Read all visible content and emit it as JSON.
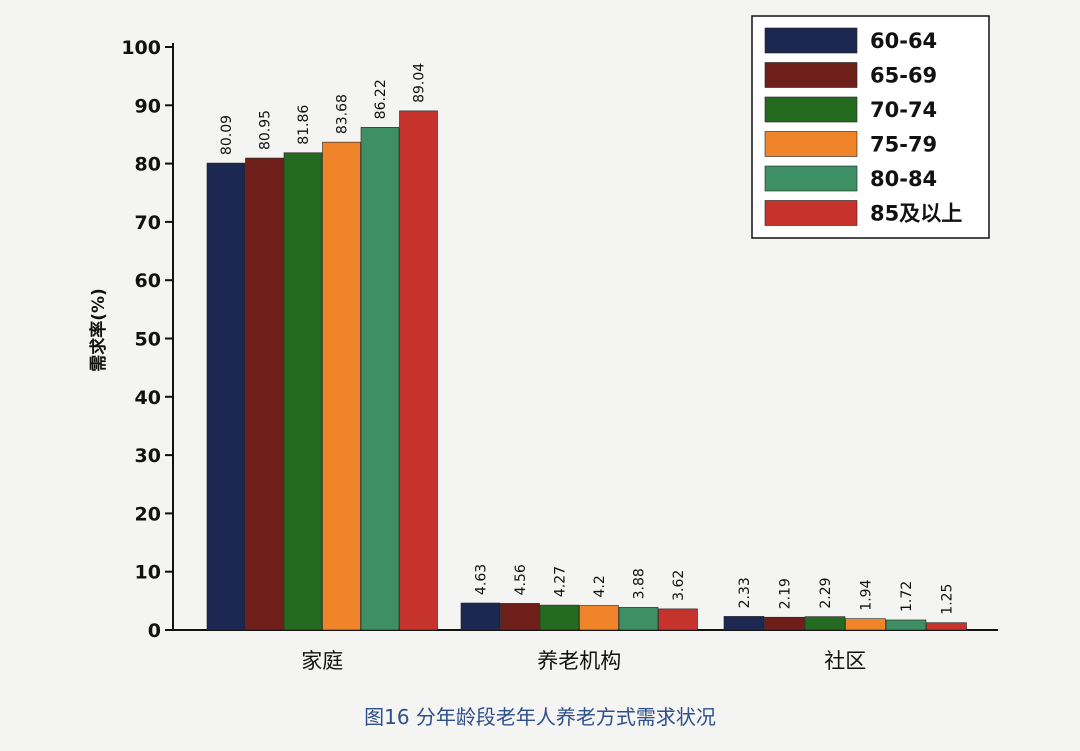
{
  "chart_data": {
    "type": "bar",
    "title": "",
    "caption": "图16 分年龄段老年人养老方式需求状况",
    "xlabel": "",
    "ylabel": "需求率(%)",
    "ylim": [
      0,
      100
    ],
    "yticks": [
      0,
      10,
      20,
      30,
      40,
      50,
      60,
      70,
      80,
      90,
      100
    ],
    "grid": false,
    "legend_position": "top-right",
    "categories": [
      "家庭",
      "养老机构",
      "社区"
    ],
    "series": [
      {
        "name": "60-64",
        "color": "#1c2752",
        "values": [
          80.09,
          4.63,
          2.33
        ]
      },
      {
        "name": "65-69",
        "color": "#6e1f1a",
        "values": [
          80.95,
          4.56,
          2.19
        ]
      },
      {
        "name": "70-74",
        "color": "#256b1f",
        "values": [
          81.86,
          4.27,
          2.29
        ]
      },
      {
        "name": "75-79",
        "color": "#f0842a",
        "values": [
          83.68,
          4.2,
          1.94
        ]
      },
      {
        "name": "80-84",
        "color": "#3e8f63",
        "values": [
          86.22,
          3.88,
          1.72
        ]
      },
      {
        "name": "85及以上",
        "color": "#c5332c",
        "values": [
          89.04,
          3.62,
          1.25
        ]
      }
    ],
    "value_labels": [
      [
        "80.09",
        "80.95",
        "81.86",
        "83.68",
        "86.22",
        "89.04"
      ],
      [
        "4.63",
        "4.56",
        "4.27",
        "4.2",
        "3.88",
        "3.62"
      ],
      [
        "2.33",
        "2.19",
        "2.29",
        "1.94",
        "1.72",
        "1.25"
      ]
    ]
  }
}
